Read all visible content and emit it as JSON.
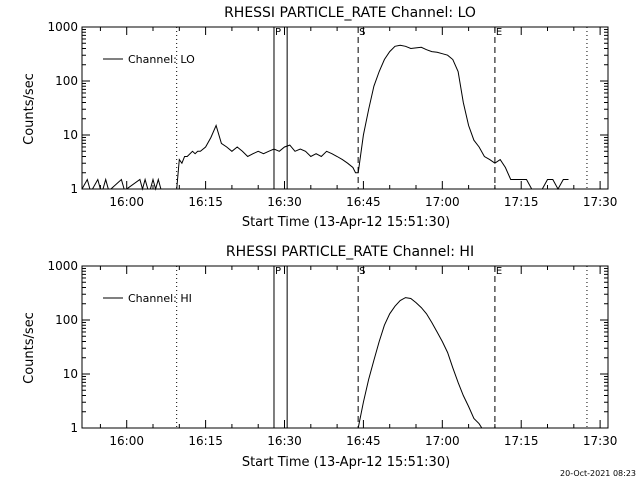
{
  "footer_timestamp": "20-Oct-2021 08:23",
  "chart_data": [
    {
      "type": "line",
      "title": "RHESSI PARTICLE_RATE Channel: LO",
      "xlabel": "Start Time (13-Apr-12 15:51:30)",
      "ylabel": "Counts/sec",
      "y_scale": "log",
      "ylim": [
        1,
        1000
      ],
      "xlim": [
        "15:51:30",
        "17:31:30"
      ],
      "x_ticks": [
        "16:00",
        "16:15",
        "16:30",
        "16:45",
        "17:00",
        "17:15",
        "17:30"
      ],
      "y_ticks": [
        "1",
        "10",
        "100",
        "1000"
      ],
      "legend": {
        "position": "top-left",
        "entries": [
          "Channel: LO"
        ]
      },
      "markers": [
        {
          "label": "",
          "time": "16:09:30",
          "style": "dotted"
        },
        {
          "label": "P",
          "time": "16:28:00",
          "style": "solid"
        },
        {
          "label": "",
          "time": "16:30:30",
          "style": "solid"
        },
        {
          "label": "S",
          "time": "16:44:00",
          "style": "dashed"
        },
        {
          "label": "E",
          "time": "17:10:00",
          "style": "dashed"
        },
        {
          "label": "",
          "time": "17:27:30",
          "style": "dotted"
        }
      ],
      "series": [
        {
          "name": "Channel: LO",
          "x": [
            "15:51:30",
            "15:52:30",
            "15:53:00",
            "15:53:30",
            "15:54:30",
            "15:55:00",
            "15:55:30",
            "15:56:00",
            "15:56:30",
            "15:57:00",
            "15:59:00",
            "15:59:30",
            "16:00:00",
            "16:02:30",
            "16:03:00",
            "16:03:30",
            "16:04:00",
            "16:04:30",
            "16:05:00",
            "16:05:30",
            "16:06:00",
            "16:06:30",
            "16:09:30",
            "16:10:00",
            "16:10:30",
            "16:11:00",
            "16:11:30",
            "16:12:30",
            "16:13:00",
            "16:13:30",
            "16:14:00",
            "16:15:00",
            "16:16:00",
            "16:17:00",
            "16:18:00",
            "16:19:00",
            "16:20:00",
            "16:21:00",
            "16:22:00",
            "16:23:00",
            "16:24:00",
            "16:25:00",
            "16:26:00",
            "16:27:00",
            "16:28:00",
            "16:29:00",
            "16:30:00",
            "16:31:00",
            "16:32:00",
            "16:33:00",
            "16:34:00",
            "16:35:00",
            "16:36:00",
            "16:37:00",
            "16:38:00",
            "16:39:00",
            "16:40:00",
            "16:41:00",
            "16:42:00",
            "16:43:00",
            "16:43:30",
            "16:44:00",
            "16:45:00",
            "16:46:00",
            "16:47:00",
            "16:48:00",
            "16:49:00",
            "16:50:00",
            "16:51:00",
            "16:52:00",
            "16:53:00",
            "16:54:00",
            "16:55:00",
            "16:56:00",
            "16:57:00",
            "16:58:00",
            "16:59:00",
            "17:00:00",
            "17:01:00",
            "17:02:00",
            "17:03:00",
            "17:04:00",
            "17:05:00",
            "17:06:00",
            "17:07:00",
            "17:08:00",
            "17:09:00",
            "17:10:00",
            "17:11:00",
            "17:12:00",
            "17:13:00",
            "17:14:00",
            "17:15:00",
            "17:16:00",
            "17:17:00",
            "17:18:00",
            "17:19:00",
            "17:20:00",
            "17:21:00",
            "17:22:00",
            "17:23:00",
            "17:24:00"
          ],
          "values": [
            1,
            1.5,
            1,
            1,
            1.5,
            1,
            1,
            1.5,
            1,
            1,
            1.5,
            1,
            1,
            1.5,
            1,
            1.5,
            1,
            1,
            1.5,
            1,
            1.5,
            1,
            1,
            3.5,
            3,
            4,
            4,
            5,
            4.5,
            5,
            5,
            6,
            9,
            15,
            7,
            6,
            5,
            6,
            5,
            4,
            4.5,
            5,
            4.5,
            5,
            5.5,
            5,
            6,
            6.5,
            5,
            5.5,
            5,
            4,
            4.5,
            4,
            5,
            4.5,
            4,
            3.5,
            3,
            2.5,
            2,
            2,
            10,
            30,
            80,
            150,
            250,
            350,
            440,
            460,
            440,
            400,
            410,
            420,
            380,
            350,
            340,
            320,
            300,
            250,
            150,
            40,
            15,
            8,
            6,
            4,
            3.5,
            3,
            3.5,
            2.5,
            1.5,
            1.5,
            1.5,
            1.5,
            1,
            1,
            1,
            1.5,
            1.5,
            1,
            1.5,
            1.5
          ]
        }
      ]
    },
    {
      "type": "line",
      "title": "RHESSI PARTICLE_RATE Channel: HI",
      "xlabel": "Start Time (13-Apr-12 15:51:30)",
      "ylabel": "Counts/sec",
      "y_scale": "log",
      "ylim": [
        1,
        1000
      ],
      "xlim": [
        "15:51:30",
        "17:31:30"
      ],
      "x_ticks": [
        "16:00",
        "16:15",
        "16:30",
        "16:45",
        "17:00",
        "17:15",
        "17:30"
      ],
      "y_ticks": [
        "1",
        "10",
        "100",
        "1000"
      ],
      "legend": {
        "position": "top-left",
        "entries": [
          "Channel: HI"
        ]
      },
      "markers": [
        {
          "label": "",
          "time": "16:09:30",
          "style": "dotted"
        },
        {
          "label": "P",
          "time": "16:28:00",
          "style": "solid"
        },
        {
          "label": "",
          "time": "16:30:30",
          "style": "solid"
        },
        {
          "label": "S",
          "time": "16:44:00",
          "style": "dashed"
        },
        {
          "label": "E",
          "time": "17:10:00",
          "style": "dashed"
        },
        {
          "label": "",
          "time": "17:27:30",
          "style": "dotted"
        }
      ],
      "series": [
        {
          "name": "Channel: HI",
          "x": [
            "16:44:00",
            "16:45:00",
            "16:46:00",
            "16:47:00",
            "16:48:00",
            "16:49:00",
            "16:50:00",
            "16:51:00",
            "16:52:00",
            "16:53:00",
            "16:54:00",
            "16:55:00",
            "16:56:00",
            "16:57:00",
            "16:58:00",
            "16:59:00",
            "17:00:00",
            "17:01:00",
            "17:02:00",
            "17:03:00",
            "17:04:00",
            "17:05:00",
            "17:06:00",
            "17:07:00",
            "17:07:30"
          ],
          "values": [
            1,
            3,
            8,
            18,
            40,
            80,
            130,
            180,
            230,
            260,
            250,
            210,
            170,
            130,
            90,
            60,
            40,
            25,
            13,
            7,
            4,
            2.5,
            1.5,
            1.2,
            1
          ]
        }
      ]
    }
  ]
}
